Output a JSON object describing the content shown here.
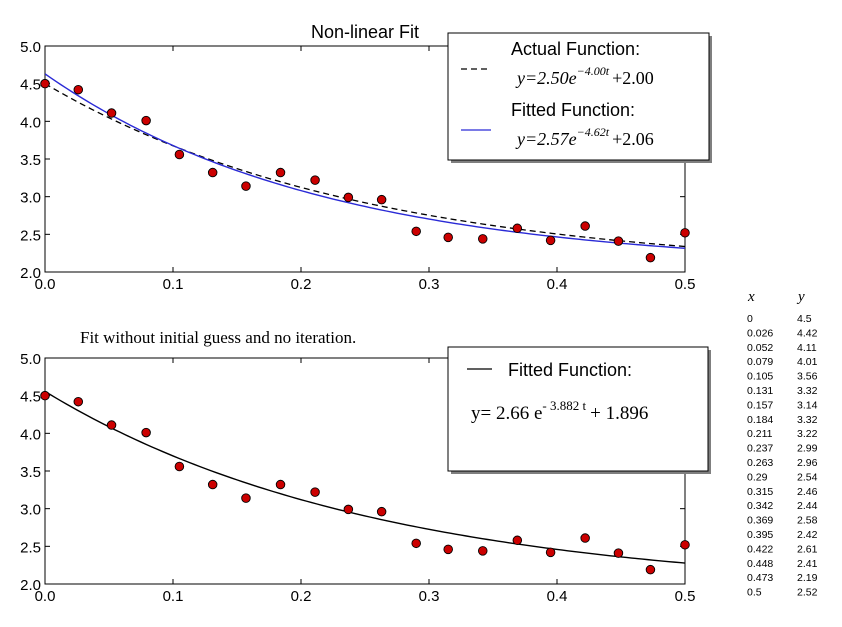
{
  "chart_data": [
    {
      "type": "scatter",
      "title": "Non-linear Fit",
      "xlim": [
        0,
        0.5
      ],
      "ylim": [
        2.0,
        5.0
      ],
      "xticks": [
        "0.0",
        "0.1",
        "0.2",
        "0.3",
        "0.4",
        "0.5"
      ],
      "yticks": [
        "2.0",
        "2.5",
        "3.0",
        "3.5",
        "4.0",
        "4.5",
        "5.0"
      ],
      "grid": false,
      "legend_position": "top-right",
      "points": {
        "x": [
          0,
          0.026,
          0.052,
          0.079,
          0.105,
          0.131,
          0.157,
          0.184,
          0.211,
          0.237,
          0.263,
          0.29,
          0.315,
          0.342,
          0.369,
          0.395,
          0.422,
          0.448,
          0.473,
          0.5
        ],
        "y": [
          4.5,
          4.42,
          4.11,
          4.01,
          3.56,
          3.32,
          3.14,
          3.32,
          3.22,
          2.99,
          2.96,
          2.54,
          2.46,
          2.44,
          2.58,
          2.42,
          2.61,
          2.41,
          2.19,
          2.52
        ],
        "color": "#cc0000"
      },
      "series": [
        {
          "name": "Actual Function:",
          "formula": {
            "prefix": "y=2.50e",
            "exponent": "−4.00t",
            "suffix": "+2.00"
          },
          "a": 2.5,
          "b": 4.0,
          "c": 2.0,
          "style": "dashed",
          "color": "#000000"
        },
        {
          "name": "Fitted Function:",
          "formula": {
            "prefix": "y=2.57e",
            "exponent": "−4.62t",
            "suffix": "+2.06"
          },
          "a": 2.57,
          "b": 4.62,
          "c": 2.06,
          "style": "solid",
          "color": "#2a2ad6"
        }
      ]
    },
    {
      "type": "scatter",
      "title": "Fit without initial guess and no iteration.",
      "xlim": [
        0,
        0.5
      ],
      "ylim": [
        2.0,
        5.0
      ],
      "xticks": [
        "0.0",
        "0.1",
        "0.2",
        "0.3",
        "0.4",
        "0.5"
      ],
      "yticks": [
        "2.0",
        "2.5",
        "3.0",
        "3.5",
        "4.0",
        "4.5",
        "5.0"
      ],
      "grid": false,
      "legend_position": "top-right",
      "points": {
        "x": [
          0,
          0.026,
          0.052,
          0.079,
          0.105,
          0.131,
          0.157,
          0.184,
          0.211,
          0.237,
          0.263,
          0.29,
          0.315,
          0.342,
          0.369,
          0.395,
          0.422,
          0.448,
          0.473,
          0.5
        ],
        "y": [
          4.5,
          4.42,
          4.11,
          4.01,
          3.56,
          3.32,
          3.14,
          3.32,
          3.22,
          2.99,
          2.96,
          2.54,
          2.46,
          2.44,
          2.58,
          2.42,
          2.61,
          2.41,
          2.19,
          2.52
        ],
        "color": "#cc0000"
      },
      "series": [
        {
          "name": "Fitted Function:",
          "formula": {
            "prefix": "y= 2.66 e",
            "exponent": "- 3.882 t",
            "suffix": "+ 1.896"
          },
          "a": 2.66,
          "b": 3.882,
          "c": 1.896,
          "style": "solid",
          "color": "#000000"
        }
      ]
    }
  ],
  "data_table": {
    "headers": [
      "x",
      "y"
    ],
    "rows": [
      [
        "0",
        "4.5"
      ],
      [
        "0.026",
        "4.42"
      ],
      [
        "0.052",
        "4.11"
      ],
      [
        "0.079",
        "4.01"
      ],
      [
        "0.105",
        "3.56"
      ],
      [
        "0.131",
        "3.32"
      ],
      [
        "0.157",
        "3.14"
      ],
      [
        "0.184",
        "3.32"
      ],
      [
        "0.211",
        "3.22"
      ],
      [
        "0.237",
        "2.99"
      ],
      [
        "0.263",
        "2.96"
      ],
      [
        "0.29",
        "2.54"
      ],
      [
        "0.315",
        "2.46"
      ],
      [
        "0.342",
        "2.44"
      ],
      [
        "0.369",
        "2.58"
      ],
      [
        "0.395",
        "2.42"
      ],
      [
        "0.422",
        "2.61"
      ],
      [
        "0.448",
        "2.41"
      ],
      [
        "0.473",
        "2.19"
      ],
      [
        "0.5",
        "2.52"
      ]
    ]
  }
}
